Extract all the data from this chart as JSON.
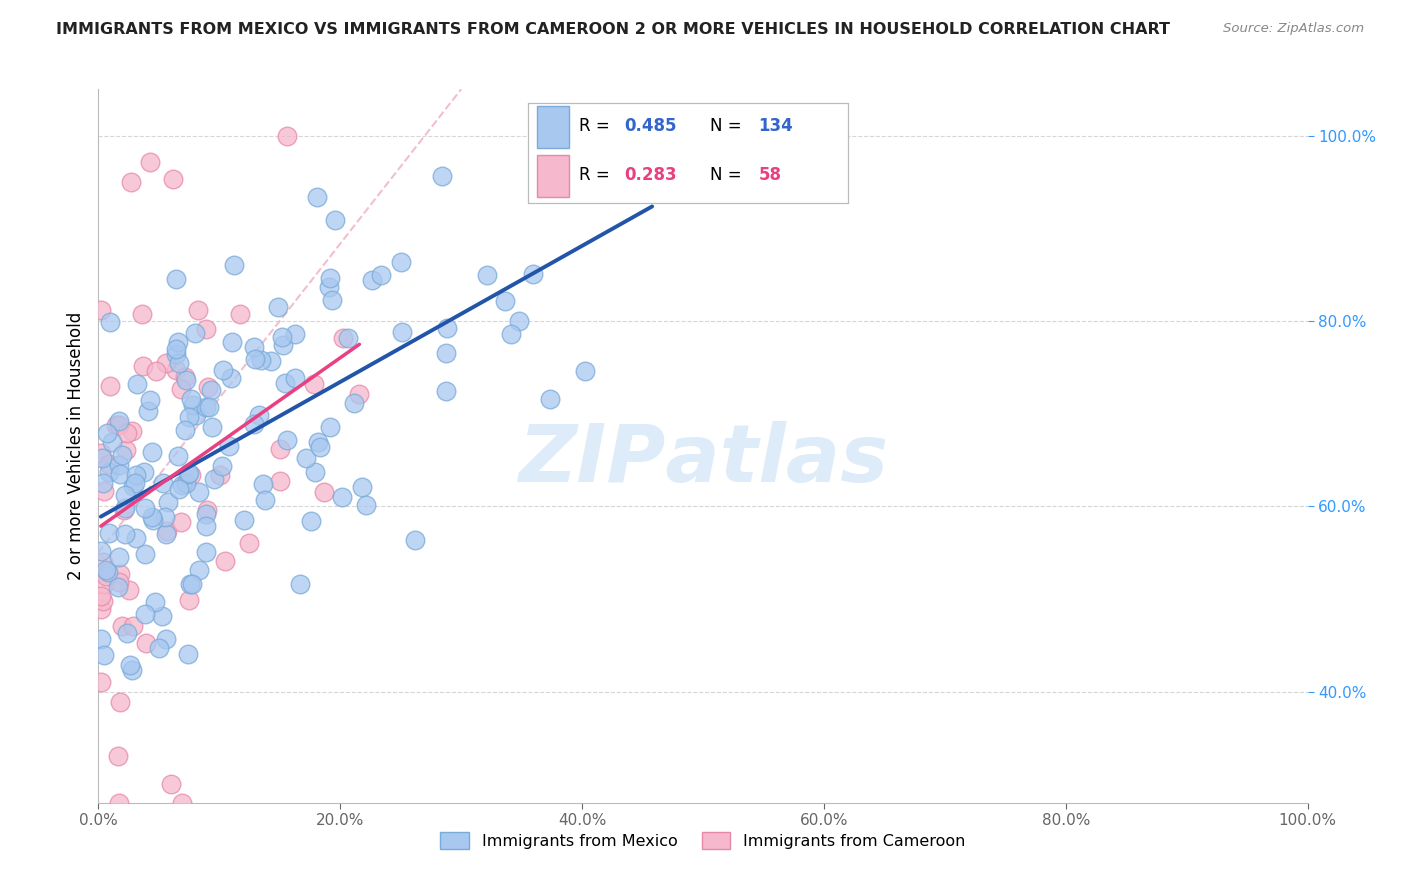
{
  "title": "IMMIGRANTS FROM MEXICO VS IMMIGRANTS FROM CAMEROON 2 OR MORE VEHICLES IN HOUSEHOLD CORRELATION CHART",
  "source": "Source: ZipAtlas.com",
  "ylabel": "2 or more Vehicles in Household",
  "y_tick_vals": [
    40.0,
    60.0,
    80.0,
    100.0
  ],
  "x_tick_vals": [
    0.0,
    20.0,
    40.0,
    60.0,
    80.0,
    100.0
  ],
  "watermark": "ZIPatlas",
  "mexico_R": 0.485,
  "mexico_N": 134,
  "cameroon_R": 0.283,
  "cameroon_N": 58,
  "mexico_color": "#a8c8f0",
  "mexico_edge_color": "#7aaad8",
  "mexico_line_color": "#2255aa",
  "cameroon_color": "#f5b8cc",
  "cameroon_edge_color": "#e888aa",
  "cameroon_line_color": "#e84080",
  "ref_line_color": "#f0b8c8",
  "background_color": "#ffffff",
  "grid_color": "#cccccc",
  "legend_R_color": "#3366cc",
  "legend_N_color": "#3366cc",
  "title_color": "#222222",
  "source_color": "#888888",
  "yaxis_tick_color": "#3399ff",
  "xaxis_tick_color": "#666666",
  "xlim": [
    0,
    100
  ],
  "ylim": [
    28,
    105
  ]
}
